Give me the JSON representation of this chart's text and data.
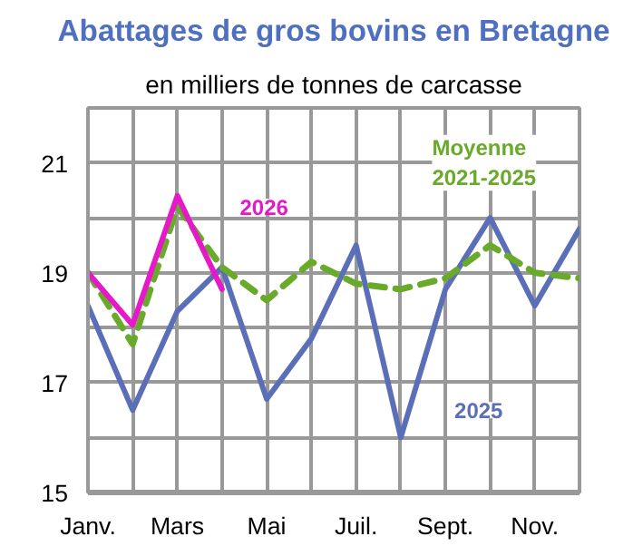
{
  "chart_data": {
    "type": "line",
    "title": "Abattages de gros bovins en Bretagne",
    "subtitle": "en milliers de tonnes de carcasse",
    "categories": [
      "Janv.",
      null,
      "Mars",
      null,
      "Mai",
      null,
      "Juil.",
      null,
      "Sept.",
      null,
      "Nov.",
      null
    ],
    "series": [
      {
        "name": "2025",
        "color": "#5b6fb8",
        "line_style": "solid",
        "values": [
          18.4,
          16.5,
          18.3,
          19.1,
          16.7,
          17.8,
          19.5,
          16.0,
          18.7,
          20.0,
          18.4,
          19.8
        ]
      },
      {
        "name": "Moyenne 2021-2025",
        "color": "#6aaa2a",
        "line_style": "dashed",
        "values": [
          19.0,
          17.7,
          20.2,
          19.1,
          18.5,
          19.2,
          18.8,
          18.7,
          18.9,
          19.5,
          19.0,
          18.9
        ]
      },
      {
        "name": "2026",
        "color": "#e619c8",
        "line_style": "solid",
        "values": [
          19.0,
          18.05,
          20.4,
          18.7,
          null,
          null,
          null,
          null,
          null,
          null,
          null,
          null
        ]
      }
    ],
    "ylim": [
      15,
      22
    ],
    "yticks": [
      15,
      {
        "value": 16,
        "label": null
      },
      17,
      {
        "value": 18,
        "label": null
      },
      19,
      {
        "value": 20,
        "label": null
      },
      21,
      {
        "value": 22,
        "label": null
      }
    ],
    "grid": true,
    "marker": "none"
  }
}
